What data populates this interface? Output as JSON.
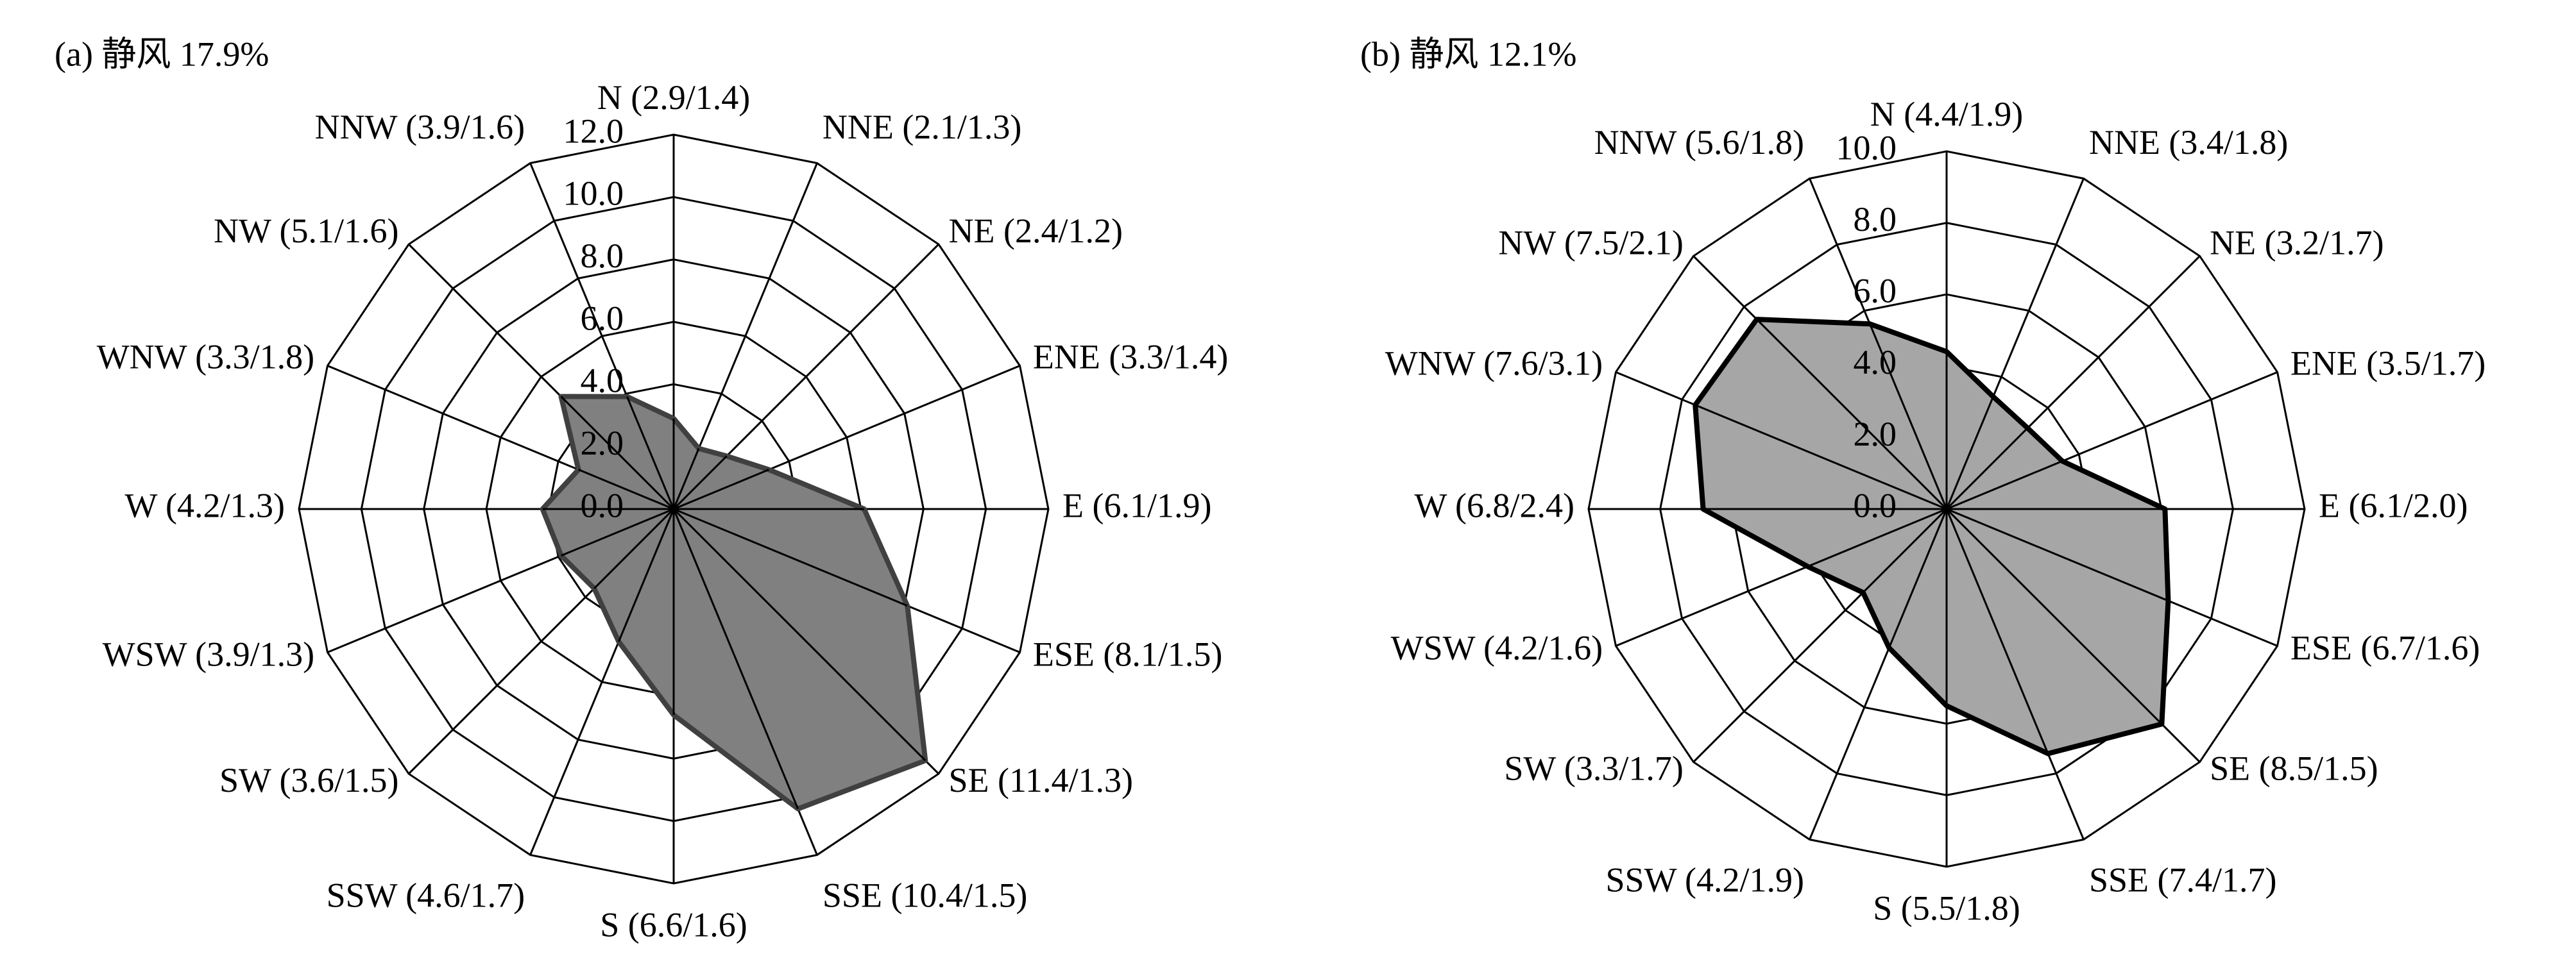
{
  "chart_data": [
    {
      "type": "radar",
      "title": "(a) 静风 17.9%",
      "categories": [
        "N (2.9/1.4)",
        "NNE (2.1/1.3)",
        "NE (2.4/1.2)",
        "ENE (3.3/1.4)",
        "E (6.1/1.9)",
        "ESE (8.1/1.5)",
        "SE (11.4/1.3)",
        "SSE (10.4/1.5)",
        "S (6.6/1.6)",
        "SSW (4.6/1.7)",
        "SW (3.6/1.5)",
        "WSW (3.9/1.3)",
        "W (4.2/1.3)",
        "WNW (3.3/1.8)",
        "NW (5.1/1.6)",
        "NNW (3.9/1.6)"
      ],
      "values": [
        2.9,
        2.1,
        2.4,
        3.3,
        6.1,
        8.1,
        11.4,
        10.4,
        6.6,
        4.6,
        3.6,
        3.9,
        4.2,
        3.3,
        5.1,
        3.9
      ],
      "color": "#808080",
      "edge_color": "#404040",
      "ylim": [
        0,
        12
      ],
      "yticks": [
        {
          "value": 0,
          "label": "0.0"
        },
        {
          "value": 2,
          "label": "2.0"
        },
        {
          "value": 4,
          "label": "4.0"
        },
        {
          "value": 6,
          "label": "6.0"
        },
        {
          "value": 8,
          "label": "8.0"
        },
        {
          "value": 10,
          "label": "10.0"
        },
        {
          "value": 12,
          "label": "12.0"
        }
      ]
    },
    {
      "type": "radar",
      "title": "(b) 静风 12.1%",
      "categories": [
        "N (4.4/1.9)",
        "NNE (3.4/1.8)",
        "NE (3.2/1.7)",
        "ENE (3.5/1.7)",
        "E (6.1/2.0)",
        "ESE (6.7/1.6)",
        "SE (8.5/1.5)",
        "SSE (7.4/1.7)",
        "S (5.5/1.8)",
        "SSW (4.2/1.9)",
        "SW (3.3/1.7)",
        "WSW (4.2/1.6)",
        "W (6.8/2.4)",
        "WNW (7.6/3.1)",
        "NW (7.5/2.1)",
        "NNW (5.6/1.8)"
      ],
      "values": [
        4.4,
        3.4,
        3.2,
        3.5,
        6.1,
        6.7,
        8.5,
        7.4,
        5.5,
        4.2,
        3.3,
        4.2,
        6.8,
        7.6,
        7.5,
        5.6
      ],
      "color": "#a6a6a6",
      "edge_color": "#000000",
      "ylim": [
        0,
        10
      ],
      "yticks": [
        {
          "value": 0,
          "label": "0.0"
        },
        {
          "value": 2,
          "label": "2.0"
        },
        {
          "value": 4,
          "label": "4.0"
        },
        {
          "value": 6,
          "label": "6.0"
        },
        {
          "value": 8,
          "label": "8.0"
        },
        {
          "value": 10,
          "label": "10.0"
        }
      ]
    }
  ]
}
